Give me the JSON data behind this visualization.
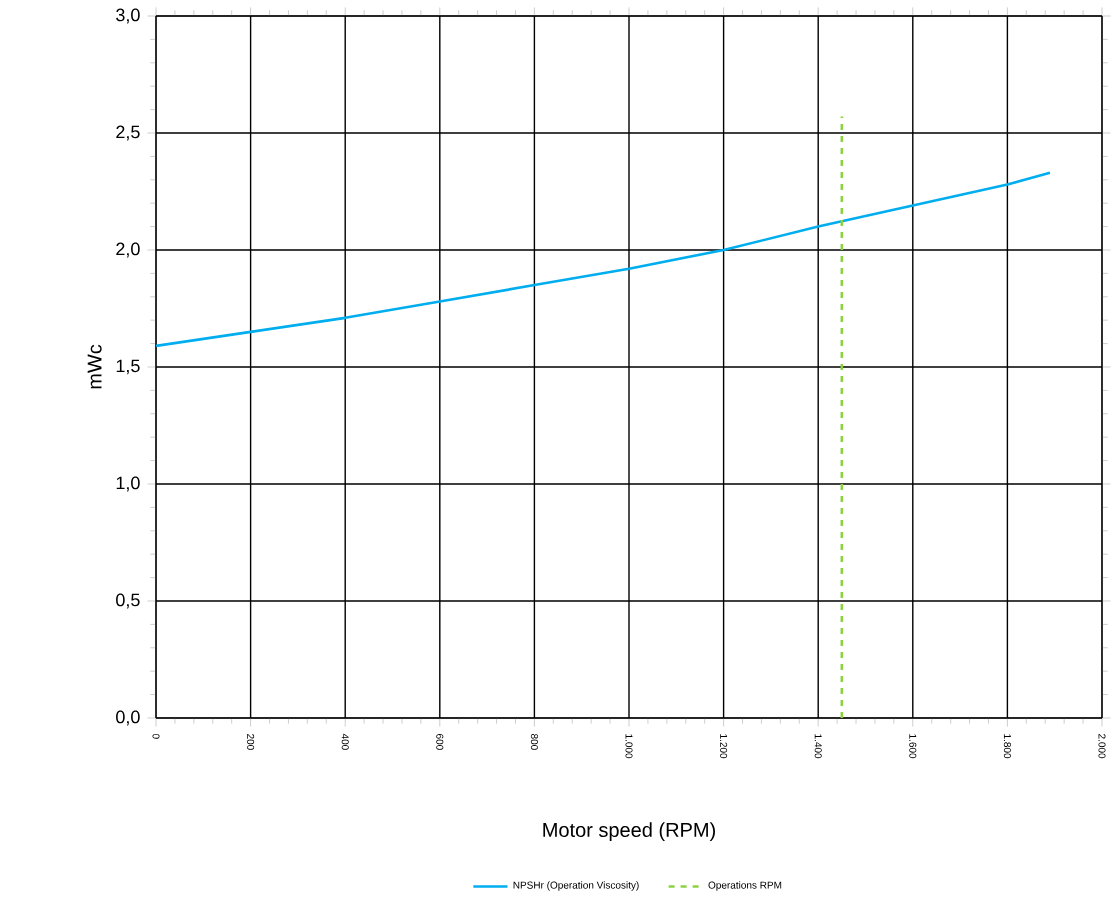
{
  "chart_data": {
    "type": "line",
    "xlabel": "Motor speed (RPM)",
    "ylabel": "mWc",
    "xlim": [
      0,
      2000
    ],
    "ylim": [
      0,
      3
    ],
    "xticks": [
      {
        "value": 0,
        "label": "0"
      },
      {
        "value": 200,
        "label": "200"
      },
      {
        "value": 400,
        "label": "400"
      },
      {
        "value": 600,
        "label": "600"
      },
      {
        "value": 800,
        "label": "800"
      },
      {
        "value": 1000,
        "label": "1.000"
      },
      {
        "value": 1200,
        "label": "1.200"
      },
      {
        "value": 1400,
        "label": "1.400"
      },
      {
        "value": 1600,
        "label": "1.600"
      },
      {
        "value": 1800,
        "label": "1.800"
      },
      {
        "value": 2000,
        "label": "2.000"
      }
    ],
    "yticks": [
      {
        "value": 0,
        "label": "0,0"
      },
      {
        "value": 0.5,
        "label": "0,5"
      },
      {
        "value": 1,
        "label": "1,0"
      },
      {
        "value": 1.5,
        "label": "1,5"
      },
      {
        "value": 2,
        "label": "2,0"
      },
      {
        "value": 2.5,
        "label": "2,5"
      },
      {
        "value": 3,
        "label": "3,0"
      }
    ],
    "grid": true,
    "legend": "bottom",
    "series": [
      {
        "name": "NPSHr (Operation Viscosity)",
        "color": "#00aeef",
        "line_style": "solid",
        "x": [
          0,
          200,
          400,
          600,
          800,
          1000,
          1200,
          1400,
          1600,
          1800,
          1890
        ],
        "values": [
          1.59,
          1.65,
          1.71,
          1.78,
          1.85,
          1.92,
          2.0,
          2.1,
          2.19,
          2.28,
          2.33
        ]
      },
      {
        "name": "Operations RPM",
        "color": "#8cd240",
        "line_style": "dashed",
        "x": [
          1450,
          1450
        ],
        "values": [
          0,
          2.57
        ]
      }
    ]
  }
}
